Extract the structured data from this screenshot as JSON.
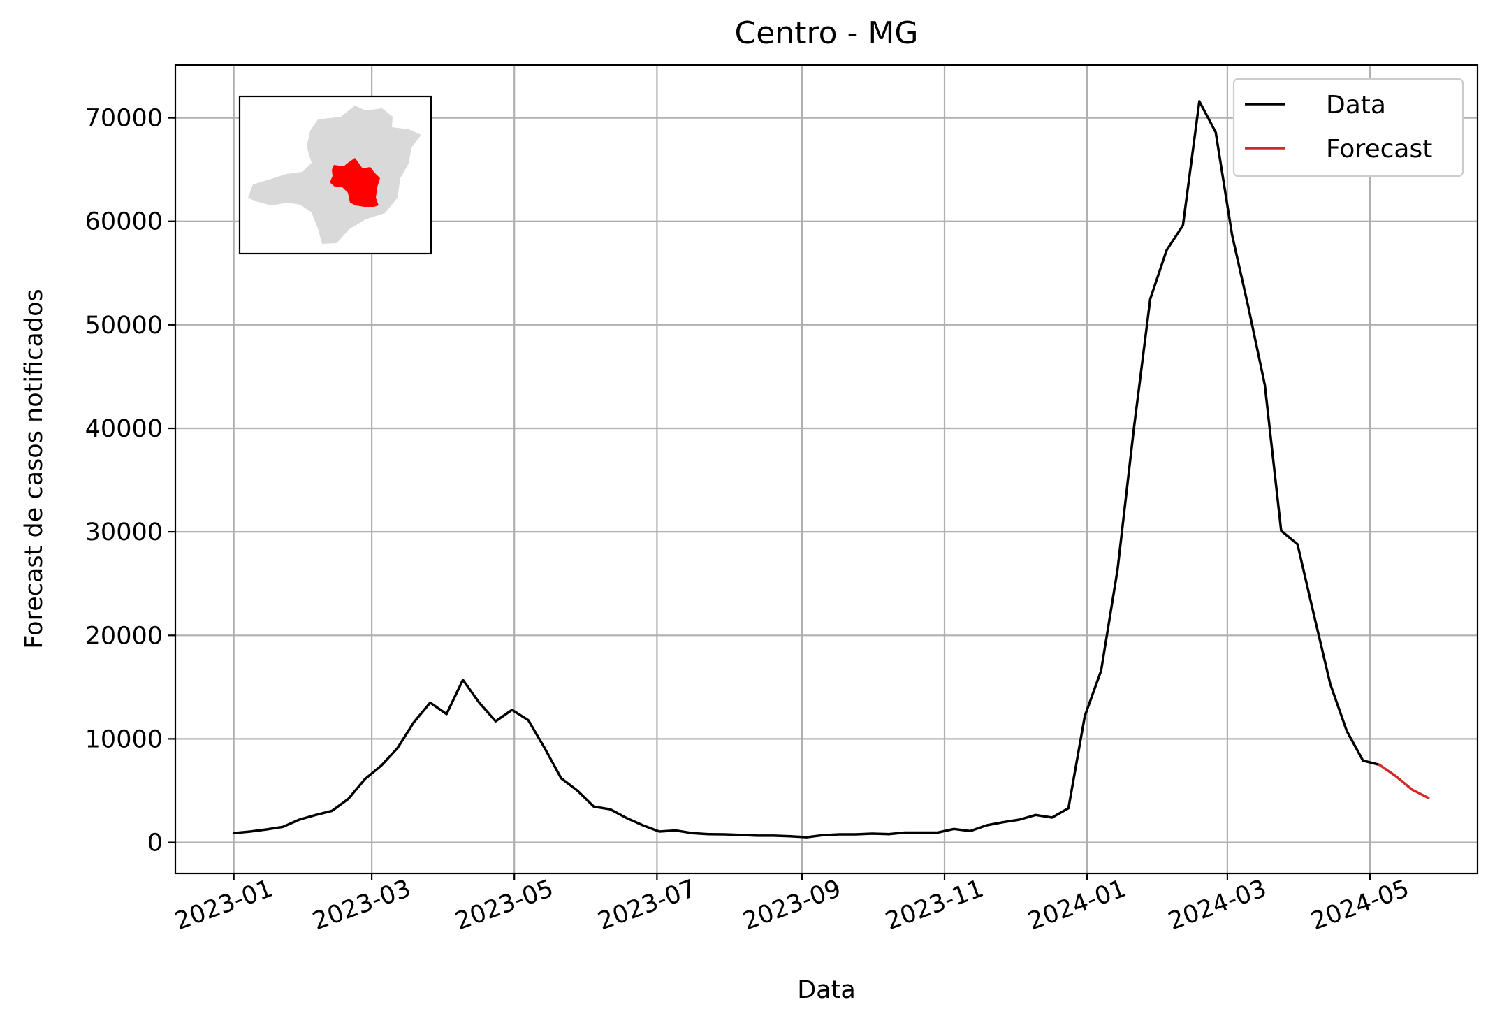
{
  "chart_data": {
    "type": "line",
    "title": "Centro - MG",
    "xlabel": "Data",
    "ylabel": "Forecast de casos notificados",
    "grid": true,
    "legend_position": "top-right",
    "x_tick_labels": [
      "2023-01",
      "2023-03",
      "2023-05",
      "2023-07",
      "2023-09",
      "2023-11",
      "2024-01",
      "2024-03",
      "2024-05"
    ],
    "x_tick_dates": [
      "2023-01-01",
      "2023-03-01",
      "2023-05-01",
      "2023-07-01",
      "2023-09-01",
      "2023-11-01",
      "2024-01-01",
      "2024-03-01",
      "2024-05-01"
    ],
    "xlim": [
      "2022-12-07",
      "2024-06-16"
    ],
    "y_ticks": [
      0,
      10000,
      20000,
      30000,
      40000,
      50000,
      60000,
      70000
    ],
    "ylim": [
      -3000,
      75100
    ],
    "inset": {
      "region_color": "#ff0000",
      "state_color": "#d9d9d9"
    },
    "series": [
      {
        "name": "Data",
        "color": "#000000",
        "x": [
          "2023-01-01",
          "2023-01-08",
          "2023-01-15",
          "2023-01-22",
          "2023-01-29",
          "2023-02-05",
          "2023-02-12",
          "2023-02-19",
          "2023-02-26",
          "2023-03-05",
          "2023-03-12",
          "2023-03-19",
          "2023-03-26",
          "2023-04-02",
          "2023-04-09",
          "2023-04-16",
          "2023-04-23",
          "2023-04-30",
          "2023-05-07",
          "2023-05-14",
          "2023-05-21",
          "2023-05-28",
          "2023-06-04",
          "2023-06-11",
          "2023-06-18",
          "2023-06-25",
          "2023-07-02",
          "2023-07-09",
          "2023-07-16",
          "2023-07-23",
          "2023-07-30",
          "2023-08-06",
          "2023-08-13",
          "2023-08-20",
          "2023-08-27",
          "2023-09-03",
          "2023-09-10",
          "2023-09-17",
          "2023-09-24",
          "2023-10-01",
          "2023-10-08",
          "2023-10-15",
          "2023-10-22",
          "2023-10-29",
          "2023-11-05",
          "2023-11-12",
          "2023-11-19",
          "2023-11-26",
          "2023-12-03",
          "2023-12-10",
          "2023-12-17",
          "2023-12-24",
          "2023-12-31",
          "2024-01-07",
          "2024-01-14",
          "2024-01-21",
          "2024-01-28",
          "2024-02-04",
          "2024-02-11",
          "2024-02-18",
          "2024-02-25",
          "2024-03-03",
          "2024-03-10",
          "2024-03-17",
          "2024-03-24",
          "2024-03-31",
          "2024-04-07",
          "2024-04-14",
          "2024-04-21",
          "2024-04-28",
          "2024-05-05"
        ],
        "y": [
          900,
          1050,
          1250,
          1500,
          2200,
          2650,
          3050,
          4200,
          6100,
          7400,
          9100,
          11600,
          13500,
          12400,
          15700,
          13500,
          11700,
          12800,
          11800,
          9100,
          6200,
          5000,
          3450,
          3200,
          2350,
          1650,
          1050,
          1150,
          900,
          800,
          780,
          720,
          650,
          650,
          600,
          500,
          700,
          780,
          780,
          850,
          800,
          950,
          950,
          950,
          1300,
          1100,
          1650,
          1950,
          2200,
          2650,
          2400,
          3300,
          12200,
          16600,
          26300,
          40000,
          52500,
          57200,
          59600,
          71600,
          68600,
          58700,
          51700,
          44200,
          30100,
          28800,
          22000,
          15300,
          10800,
          7900,
          7500
        ]
      },
      {
        "name": "Forecast",
        "color": "#d62728",
        "x": [
          "2024-05-05",
          "2024-05-12",
          "2024-05-19",
          "2024-05-26"
        ],
        "y": [
          7500,
          6400,
          5100,
          4300
        ]
      }
    ]
  }
}
